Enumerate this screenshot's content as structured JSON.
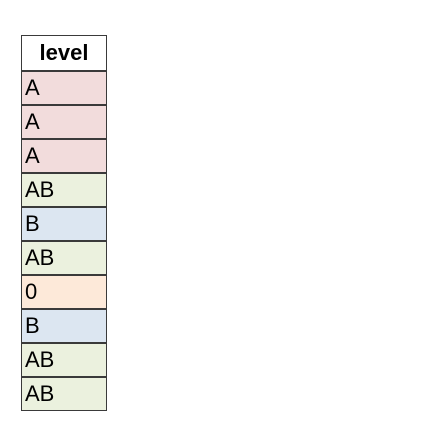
{
  "column": {
    "header": "level"
  },
  "rows": [
    {
      "value": "A",
      "color": "#f2dcdc"
    },
    {
      "value": "A",
      "color": "#f2dcdc"
    },
    {
      "value": "A",
      "color": "#f2dcdc"
    },
    {
      "value": "AB",
      "color": "#ebf1de"
    },
    {
      "value": "B",
      "color": "#dce6f1"
    },
    {
      "value": "AB",
      "color": "#ebf1de"
    },
    {
      "value": "0",
      "color": "#fde9d9"
    },
    {
      "value": "B",
      "color": "#dce6f1"
    },
    {
      "value": "AB",
      "color": "#ebf1de"
    },
    {
      "value": "AB",
      "color": "#ebf1de"
    }
  ]
}
